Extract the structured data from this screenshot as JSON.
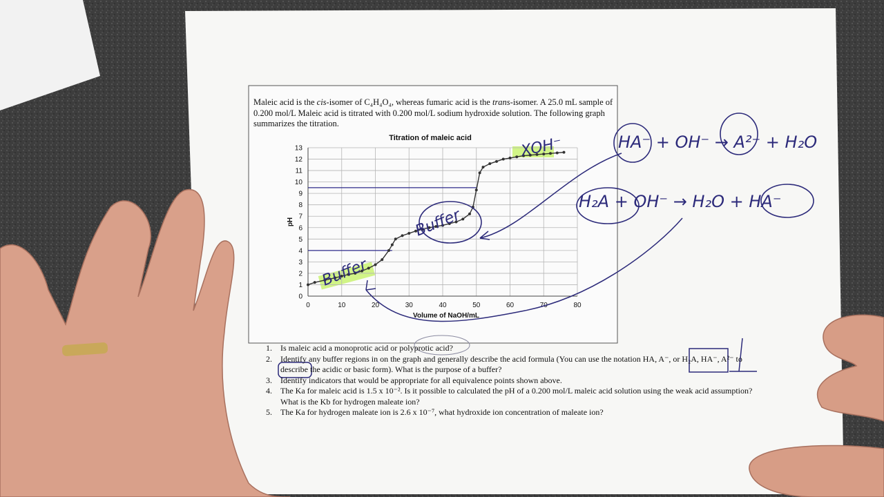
{
  "intro": [
    {
      "text": "Maleic acid is the ",
      "italic": false
    },
    {
      "text": "cis",
      "italic": true
    },
    {
      "text": "-isomer of C₄H₄O₄, whereas fumaric acid is the ",
      "italic": false
    },
    {
      "text": "trans",
      "italic": true
    },
    {
      "text": "-isomer.  A 25.0 mL sample of 0.200 mol/L Maleic acid is titrated with 0.200 mol/L sodium hydroxide solution.  The following graph summarizes the titration.",
      "italic": false
    }
  ],
  "chart_data": {
    "type": "line",
    "title": "Titration of maleic acid",
    "x_label": "Volume of NaOH/mL",
    "y_label": "pH",
    "x": [
      0,
      2,
      5,
      8,
      10,
      12,
      14,
      16,
      18,
      20,
      22,
      24,
      25,
      26,
      28,
      30,
      32,
      34,
      36,
      38,
      40,
      42,
      44,
      46,
      48,
      49,
      50,
      51,
      52,
      54,
      56,
      58,
      60,
      62,
      64,
      66,
      68,
      70,
      72,
      74,
      76
    ],
    "values": [
      1.0,
      1.2,
      1.4,
      1.6,
      1.75,
      1.9,
      2.0,
      2.2,
      2.45,
      2.75,
      3.2,
      4.0,
      4.5,
      5.0,
      5.3,
      5.5,
      5.7,
      5.85,
      6.0,
      6.1,
      6.2,
      6.35,
      6.5,
      6.75,
      7.2,
      7.8,
      9.3,
      10.8,
      11.3,
      11.6,
      11.8,
      12.0,
      12.1,
      12.2,
      12.3,
      12.35,
      12.4,
      12.45,
      12.5,
      12.55,
      12.6
    ],
    "color": "#333333",
    "xlim": [
      0,
      80
    ],
    "ylim": [
      0,
      13
    ],
    "xticks": [
      0,
      10,
      20,
      30,
      40,
      50,
      60,
      70,
      80
    ],
    "yticks": [
      0,
      1,
      2,
      3,
      4,
      5,
      6,
      7,
      8,
      9,
      10,
      11,
      12,
      13
    ],
    "grid": true,
    "reference_lines": [
      {
        "y": 9.5,
        "x_end": 50,
        "color": "#2c2a8a"
      },
      {
        "y": 4,
        "x_end": 25,
        "color": "#2c2a8a"
      }
    ]
  },
  "questions": [
    {
      "number": "1.",
      "text": "Is maleic acid a monoprotic acid or polyprotic acid?"
    },
    {
      "number": "2.",
      "text": "Identify any buffer regions in on the graph and generally describe the acid formula (You can use the notation HA, A⁻, or H₂A, HA⁻, A²⁻ to describe the acidic or basic form).  What is the purpose of a buffer?"
    },
    {
      "number": "3.",
      "text": "Identify indicators that would be appropriate for all equivalence points shown above."
    },
    {
      "number": "4.",
      "text": "The Ka for maleic acid is 1.5 x 10⁻².  Is it possible to calculated the pH of a 0.200 mol/L maleic acid solution using the weak acid assumption?  What is the Kb for hydrogen maleate ion?"
    },
    {
      "number": "5.",
      "text": "The Ka for hydrogen maleate ion is 2.6 x 10⁻⁷, what hydroxide ion concentration of maleate ion?"
    }
  ],
  "handwriting": [
    {
      "text": "HA⁻ + OH⁻ → A²⁻ + H₂O"
    },
    {
      "text": "H₂A + OH⁻ → H₂O + HA⁻"
    },
    {
      "text": "XOH⁻"
    },
    {
      "text": "Buffer"
    },
    {
      "text": "Buffer"
    }
  ]
}
